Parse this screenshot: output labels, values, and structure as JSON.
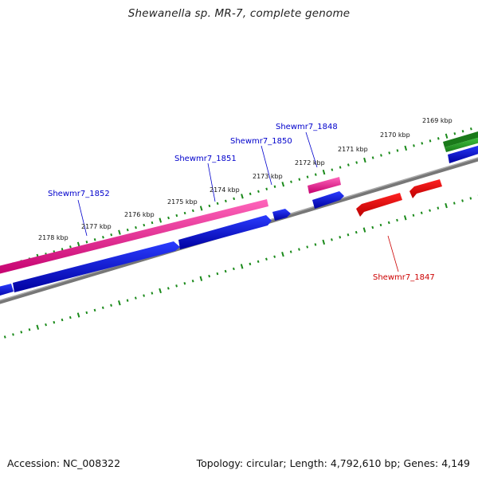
{
  "header": {
    "title": "Shewanella sp. MR-7, complete genome"
  },
  "footer": {
    "accession": "Accession: NC_008322",
    "topology": "Topology: circular; Length: 4,792,610 bp; Genes: 4,149"
  },
  "colors": {
    "backbone": "#888888",
    "tick": "#1a8a1a",
    "forward_gene_top": "#ff55b0",
    "forward_gene_bottom": "#cc0077",
    "forward_cds_top": "#2233ff",
    "forward_cds_bottom": "#0000aa",
    "reverse_gene": "#ee0000",
    "rna_gene": "#33aa33",
    "forward_label": "#0000cc",
    "reverse_label": "#cc0000"
  },
  "ruler": {
    "ticks": [
      {
        "label": "2178 kbp"
      },
      {
        "label": "2177 kbp"
      },
      {
        "label": "2176 kbp"
      },
      {
        "label": "2175 kbp"
      },
      {
        "label": "2174 kbp"
      },
      {
        "label": "2173 kbp"
      },
      {
        "label": "2172 kbp"
      },
      {
        "label": "2171 kbp"
      },
      {
        "label": "2170 kbp"
      },
      {
        "label": "2169 kbp"
      }
    ]
  },
  "genes": [
    {
      "label": "Shewmr7_1852",
      "strand": "forward"
    },
    {
      "label": "Shewmr7_1851",
      "strand": "forward"
    },
    {
      "label": "Shewmr7_1850",
      "strand": "forward"
    },
    {
      "label": "Shewmr7_1848",
      "strand": "forward"
    },
    {
      "label": "Shewmr7_1847",
      "strand": "reverse"
    }
  ]
}
